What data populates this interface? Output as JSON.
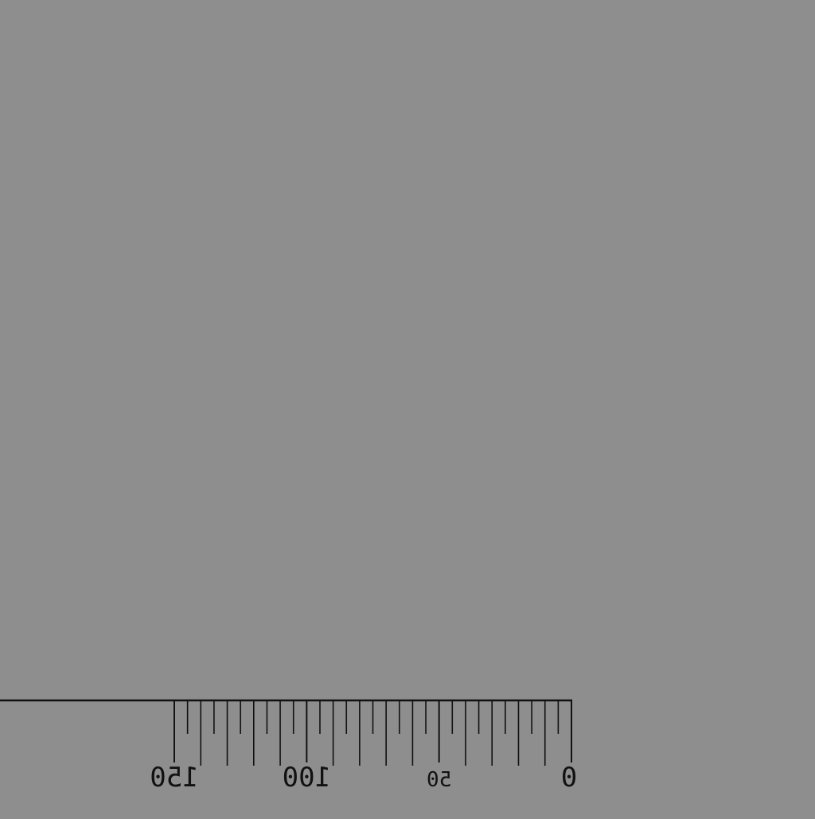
{
  "background_color": "#8e8e8e",
  "ink_color": "#111111",
  "scale": {
    "direction": "right-to-left",
    "minor_step": 5,
    "major_step": 50,
    "range": [
      0,
      150
    ],
    "labels": [
      "0",
      "50",
      "100",
      "150"
    ],
    "labels_rendered_mirrored": true
  }
}
